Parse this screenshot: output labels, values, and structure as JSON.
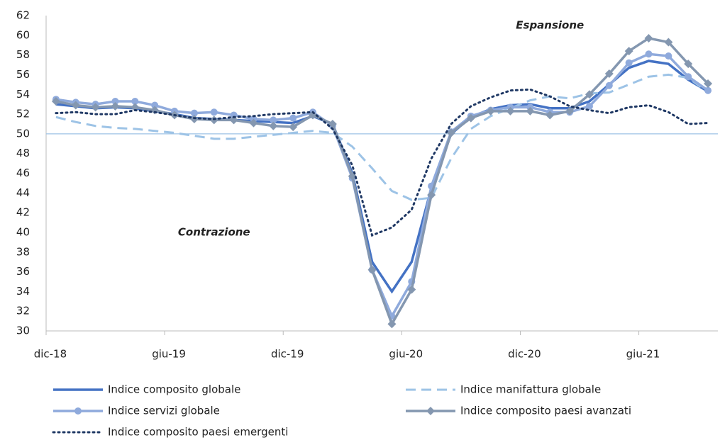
{
  "chart_data": {
    "type": "line",
    "categories": [
      "dic-18",
      null,
      null,
      null,
      null,
      null,
      "giu-19",
      null,
      null,
      null,
      null,
      null,
      "dic-19",
      null,
      null,
      null,
      null,
      null,
      "giu-20",
      null,
      null,
      null,
      null,
      null,
      "dic-20",
      null,
      null,
      null,
      null,
      null,
      "giu-21",
      null,
      null,
      null
    ],
    "ylim": [
      30,
      62
    ],
    "yticks": [
      30,
      32,
      34,
      36,
      38,
      40,
      42,
      44,
      46,
      48,
      50,
      52,
      54,
      56,
      58,
      60,
      62
    ],
    "reference_line": 50,
    "reference_color": "#9dc3e6",
    "annotations": [
      {
        "text": "Espansione",
        "x": 25,
        "y": 61
      },
      {
        "text": "Contrazione",
        "x": 8,
        "y": 40
      }
    ],
    "series": [
      {
        "name": "Indice composito globale",
        "color": "#4472c4",
        "style": "solid",
        "values": [
          53.0,
          52.8,
          52.6,
          52.7,
          52.6,
          52.3,
          52.0,
          51.6,
          51.5,
          51.4,
          51.3,
          51.2,
          51.1,
          51.8,
          51.0,
          46.0,
          37.0,
          34.0,
          37.0,
          44.5,
          50.0,
          51.7,
          52.5,
          52.9,
          53.0,
          52.6,
          52.6,
          53.3,
          55.0,
          56.7,
          57.4,
          57.1,
          55.5,
          54.3
        ]
      },
      {
        "name": "Indice manifattura globale",
        "color": "#9dc3e6",
        "style": "dashed",
        "values": [
          51.7,
          51.2,
          50.8,
          50.6,
          50.5,
          50.3,
          50.1,
          49.8,
          49.5,
          49.5,
          49.7,
          49.9,
          50.1,
          50.3,
          50.1,
          48.7,
          46.5,
          44.2,
          43.3,
          43.5,
          47.5,
          50.5,
          51.8,
          52.6,
          53.4,
          53.8,
          53.6,
          54.1,
          54.2,
          55.0,
          55.8,
          56.0,
          55.7,
          54.2
        ]
      },
      {
        "name": "Indice servizi globale",
        "color": "#8faadc",
        "style": "solid",
        "marker": "circle",
        "values": [
          53.5,
          53.2,
          53.0,
          53.3,
          53.3,
          52.9,
          52.3,
          52.1,
          52.2,
          51.9,
          51.5,
          51.4,
          51.6,
          52.2,
          50.8,
          45.5,
          36.2,
          31.5,
          35.0,
          44.7,
          50.2,
          51.8,
          52.4,
          52.7,
          52.7,
          52.2,
          52.2,
          52.8,
          54.9,
          57.2,
          58.1,
          57.9,
          55.8,
          54.4
        ]
      },
      {
        "name": "Indice composito paesi avanzati",
        "color": "#8497b0",
        "style": "solid",
        "marker": "diamond",
        "values": [
          53.3,
          52.9,
          52.7,
          52.8,
          52.7,
          52.4,
          51.9,
          51.5,
          51.4,
          51.4,
          51.1,
          50.8,
          50.7,
          51.9,
          51.0,
          45.7,
          36.2,
          30.7,
          34.2,
          43.8,
          50.1,
          51.6,
          52.3,
          52.3,
          52.3,
          51.9,
          52.3,
          54.0,
          56.1,
          58.4,
          59.7,
          59.3,
          57.1,
          55.1
        ]
      },
      {
        "name": "Indice composito paesi emergenti",
        "color": "#1f3864",
        "style": "dotted",
        "values": [
          52.1,
          52.2,
          52.0,
          52.0,
          52.4,
          52.2,
          51.9,
          51.6,
          51.5,
          51.7,
          51.8,
          52.0,
          52.1,
          52.2,
          50.5,
          46.8,
          39.7,
          40.5,
          42.3,
          47.5,
          51.0,
          52.8,
          53.7,
          54.4,
          54.5,
          53.8,
          52.8,
          52.4,
          52.1,
          52.7,
          52.9,
          52.2,
          51.0,
          51.1
        ]
      }
    ]
  }
}
